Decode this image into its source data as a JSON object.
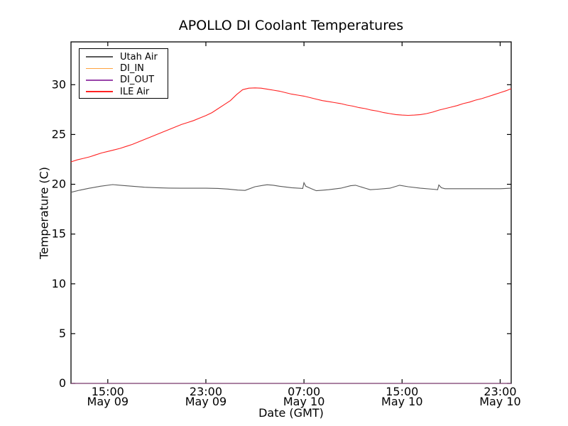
{
  "figure": {
    "background": "#ffffff"
  },
  "chart_data": {
    "type": "line",
    "title": "APOLLO DI Coolant Temperatures",
    "xlabel": "Date (GMT)",
    "ylabel": "Temperature (C)",
    "grid": false,
    "legend_position": "upper left",
    "axis_color": "#000000",
    "ylim": [
      0,
      34.3
    ],
    "y_ticks": [
      0,
      5,
      10,
      15,
      20,
      25,
      30
    ],
    "xlim_hours": [
      0,
      35.9
    ],
    "x_ticks": [
      {
        "h": 3,
        "time": "15:00",
        "date": "May 09"
      },
      {
        "h": 11,
        "time": "23:00",
        "date": "May 09"
      },
      {
        "h": 19,
        "time": "07:00",
        "date": "May 10"
      },
      {
        "h": 27,
        "time": "15:00",
        "date": "May 10"
      },
      {
        "h": 35,
        "time": "23:00",
        "date": "May 10"
      }
    ],
    "series": [
      {
        "name": "Utah Air",
        "color": "#595959",
        "points": [
          [
            0,
            19.2
          ],
          [
            0.7,
            19.4
          ],
          [
            1.5,
            19.6
          ],
          [
            2.4,
            19.8
          ],
          [
            3.4,
            19.97
          ],
          [
            4,
            19.9
          ],
          [
            5,
            19.8
          ],
          [
            6,
            19.7
          ],
          [
            7,
            19.65
          ],
          [
            8,
            19.62
          ],
          [
            9,
            19.6
          ],
          [
            10,
            19.6
          ],
          [
            11,
            19.6
          ],
          [
            12,
            19.58
          ],
          [
            12.8,
            19.52
          ],
          [
            13.6,
            19.42
          ],
          [
            14.2,
            19.38
          ],
          [
            15,
            19.75
          ],
          [
            15.7,
            19.9
          ],
          [
            16,
            19.95
          ],
          [
            16.5,
            19.9
          ],
          [
            17,
            19.8
          ],
          [
            18,
            19.65
          ],
          [
            18.9,
            19.58
          ],
          [
            19.0,
            20.15
          ],
          [
            19.15,
            19.8
          ],
          [
            19.6,
            19.55
          ],
          [
            20,
            19.35
          ],
          [
            20.5,
            19.4
          ],
          [
            21,
            19.45
          ],
          [
            22,
            19.6
          ],
          [
            22.8,
            19.85
          ],
          [
            23.2,
            19.9
          ],
          [
            23.6,
            19.75
          ],
          [
            24,
            19.6
          ],
          [
            24.4,
            19.45
          ],
          [
            25,
            19.5
          ],
          [
            26,
            19.6
          ],
          [
            26.8,
            19.9
          ],
          [
            27.5,
            19.75
          ],
          [
            28.5,
            19.6
          ],
          [
            29.5,
            19.5
          ],
          [
            29.9,
            19.45
          ],
          [
            30.0,
            19.93
          ],
          [
            30.2,
            19.65
          ],
          [
            30.5,
            19.55
          ],
          [
            31,
            19.55
          ],
          [
            32,
            19.55
          ],
          [
            33,
            19.55
          ],
          [
            34,
            19.55
          ],
          [
            35,
            19.55
          ],
          [
            35.9,
            19.6
          ]
        ]
      },
      {
        "name": "DI_IN",
        "color": "#ffa33f",
        "points": [
          [
            0,
            0
          ],
          [
            35.9,
            0
          ]
        ]
      },
      {
        "name": "DI_OUT",
        "color": "#9944aa",
        "points": [
          [
            0,
            0
          ],
          [
            35.9,
            0
          ]
        ]
      },
      {
        "name": "ILE Air",
        "color": "#ff2222",
        "points": [
          [
            0,
            22.25
          ],
          [
            0.5,
            22.45
          ],
          [
            1,
            22.6
          ],
          [
            1.5,
            22.75
          ],
          [
            2,
            22.95
          ],
          [
            2.5,
            23.15
          ],
          [
            3,
            23.3
          ],
          [
            3.5,
            23.45
          ],
          [
            4,
            23.6
          ],
          [
            4.5,
            23.8
          ],
          [
            5,
            24.0
          ],
          [
            5.5,
            24.25
          ],
          [
            6,
            24.5
          ],
          [
            6.5,
            24.75
          ],
          [
            7,
            25.0
          ],
          [
            7.5,
            25.25
          ],
          [
            8,
            25.5
          ],
          [
            8.5,
            25.75
          ],
          [
            9,
            26.0
          ],
          [
            9.5,
            26.2
          ],
          [
            10,
            26.4
          ],
          [
            10.5,
            26.65
          ],
          [
            11,
            26.9
          ],
          [
            11.5,
            27.2
          ],
          [
            12,
            27.6
          ],
          [
            12.5,
            28.0
          ],
          [
            13,
            28.4
          ],
          [
            13.5,
            29.0
          ],
          [
            14,
            29.5
          ],
          [
            14.5,
            29.65
          ],
          [
            15,
            29.68
          ],
          [
            15.5,
            29.65
          ],
          [
            16,
            29.55
          ],
          [
            16.5,
            29.45
          ],
          [
            17,
            29.35
          ],
          [
            17.5,
            29.2
          ],
          [
            18,
            29.05
          ],
          [
            18.5,
            28.95
          ],
          [
            19,
            28.85
          ],
          [
            19.5,
            28.7
          ],
          [
            20,
            28.55
          ],
          [
            20.5,
            28.4
          ],
          [
            21,
            28.3
          ],
          [
            21.5,
            28.2
          ],
          [
            22,
            28.1
          ],
          [
            22.5,
            27.95
          ],
          [
            23,
            27.85
          ],
          [
            23.5,
            27.7
          ],
          [
            24,
            27.6
          ],
          [
            24.5,
            27.45
          ],
          [
            25,
            27.35
          ],
          [
            25.5,
            27.2
          ],
          [
            26,
            27.1
          ],
          [
            26.5,
            27.0
          ],
          [
            27,
            26.95
          ],
          [
            27.5,
            26.92
          ],
          [
            28,
            26.95
          ],
          [
            28.5,
            27.0
          ],
          [
            29,
            27.1
          ],
          [
            29.5,
            27.25
          ],
          [
            30,
            27.45
          ],
          [
            30.5,
            27.6
          ],
          [
            31,
            27.75
          ],
          [
            31.5,
            27.9
          ],
          [
            32,
            28.1
          ],
          [
            32.5,
            28.25
          ],
          [
            33,
            28.45
          ],
          [
            33.5,
            28.6
          ],
          [
            34,
            28.8
          ],
          [
            34.5,
            29.0
          ],
          [
            35,
            29.2
          ],
          [
            35.5,
            29.4
          ],
          [
            35.9,
            29.6
          ]
        ]
      }
    ]
  }
}
